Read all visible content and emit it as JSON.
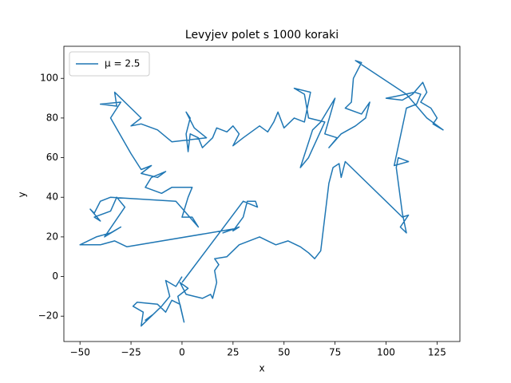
{
  "chart_data": {
    "type": "line",
    "title": "Levyjev polet s 1000 koraki",
    "xlabel": "x",
    "ylabel": "y",
    "xlim": [
      -57.9,
      136.2
    ],
    "ylim": [
      -32.8,
      116.2
    ],
    "xticks": [
      {
        "value": -50,
        "label": "−50"
      },
      {
        "value": -25,
        "label": "−25"
      },
      0,
      25,
      50,
      75,
      100,
      125
    ],
    "yticks": [
      {
        "value": -20,
        "label": "−20"
      },
      0,
      20,
      40,
      60,
      80,
      100
    ],
    "legend": "upper left",
    "x": [
      0,
      -3,
      -8,
      -6,
      -10,
      -15,
      -18,
      -14,
      -20,
      -19,
      -24,
      -22,
      -12,
      -8,
      -5,
      -1,
      1,
      -2,
      3,
      -1,
      2,
      6,
      10,
      14,
      15,
      17,
      16,
      18,
      16,
      22,
      28,
      38,
      42,
      46,
      52,
      58,
      62,
      65,
      68,
      72,
      74,
      77,
      78,
      80,
      108,
      111,
      107,
      110,
      108,
      105,
      106,
      111,
      104,
      110,
      115,
      117,
      114,
      105,
      100,
      108,
      113,
      118,
      120,
      117,
      122,
      125,
      123,
      128,
      120,
      110,
      85,
      88,
      84,
      83,
      80,
      88,
      92,
      90,
      85,
      78,
      72,
      76,
      70,
      75,
      68,
      64,
      58,
      62,
      70,
      62,
      60,
      55,
      63,
      60,
      55,
      50,
      47,
      45,
      42,
      38,
      30,
      25,
      28,
      25,
      22,
      17,
      15,
      10,
      8,
      4,
      3,
      2,
      4,
      2,
      6,
      12,
      -5,
      -12,
      -20,
      -25,
      -20,
      -25,
      -33,
      -32,
      -40,
      -30,
      -35,
      -25,
      -20,
      -15,
      -20,
      -12,
      -8,
      -15,
      -18,
      -10,
      -5,
      5,
      3,
      0,
      5,
      8,
      -3,
      -35,
      -40,
      -43,
      -45,
      -40,
      -43,
      -35,
      -32,
      -28,
      -38,
      -30,
      -35,
      -42,
      -50,
      -40,
      -33,
      -27,
      25,
      20,
      28,
      25,
      30,
      32,
      36,
      37,
      30,
      0
    ],
    "series": [
      {
        "name": "μ = 2.5",
        "color": "#1f77b4",
        "values": [
          0,
          -5,
          -2,
          -10,
          -15,
          -20,
          -22,
          -19,
          -25,
          -18,
          -15,
          -13,
          -14,
          -18,
          -12,
          -14,
          -23,
          -10,
          -6,
          -3,
          -9,
          -10,
          -11,
          -9,
          -11,
          -3,
          3,
          6,
          9,
          10,
          16,
          20,
          18,
          16,
          18,
          15,
          12,
          9,
          13,
          47,
          55,
          57,
          50,
          58,
          30,
          31,
          25,
          22,
          32,
          55,
          60,
          58,
          56,
          85,
          87,
          92,
          93,
          91,
          90,
          89,
          92,
          98,
          93,
          88,
          85,
          80,
          77,
          74,
          80,
          92,
          109,
          108,
          100,
          88,
          85,
          82,
          88,
          80,
          76,
          72,
          65,
          70,
          72,
          90,
          78,
          74,
          55,
          60,
          78,
          80,
          92,
          95,
          93,
          78,
          80,
          75,
          83,
          78,
          73,
          76,
          70,
          66,
          72,
          76,
          73,
          75,
          70,
          65,
          70,
          72,
          63,
          72,
          80,
          83,
          75,
          70,
          68,
          74,
          77,
          76,
          80,
          85,
          93,
          86,
          87,
          88,
          80,
          62,
          54,
          56,
          52,
          50,
          53,
          50,
          45,
          42,
          45,
          45,
          40,
          30,
          30,
          25,
          38,
          40,
          38,
          32,
          34,
          28,
          30,
          33,
          40,
          35,
          20,
          25,
          22,
          20,
          16,
          16,
          18,
          15,
          24,
          22,
          25,
          23,
          30,
          38,
          38,
          35,
          38,
          -3
        ]
      }
    ]
  }
}
